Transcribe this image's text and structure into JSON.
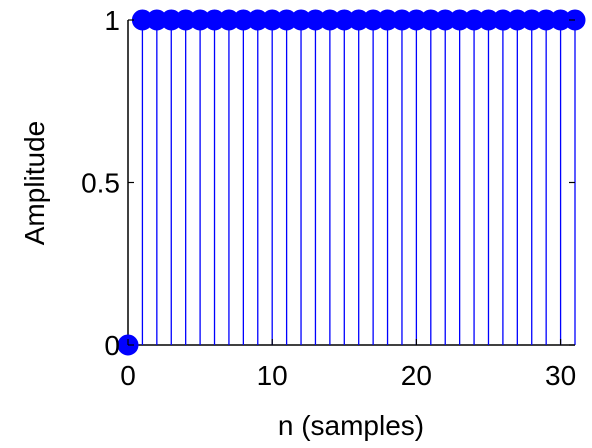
{
  "chart_data": {
    "type": "stem",
    "xlabel": "n (samples)",
    "ylabel": "Amplitude",
    "xlim": [
      0,
      31
    ],
    "ylim": [
      0,
      1
    ],
    "x_ticks": [
      0,
      10,
      20,
      30
    ],
    "x_tick_labels": [
      "0",
      "10",
      "20",
      "30"
    ],
    "y_ticks": [
      0,
      0.5,
      1
    ],
    "y_tick_labels": [
      "0",
      "0.5",
      "1"
    ],
    "grid": false,
    "series": [
      {
        "color": "#0000ff",
        "x": [
          0,
          1,
          2,
          3,
          4,
          5,
          6,
          7,
          8,
          9,
          10,
          11,
          12,
          13,
          14,
          15,
          16,
          17,
          18,
          19,
          20,
          21,
          22,
          23,
          24,
          25,
          26,
          27,
          28,
          29,
          30,
          31
        ],
        "values": [
          0,
          1,
          1,
          1,
          1,
          1,
          1,
          1,
          1,
          1,
          1,
          1,
          1,
          1,
          1,
          1,
          1,
          1,
          1,
          1,
          1,
          1,
          1,
          1,
          1,
          1,
          1,
          1,
          1,
          1,
          1,
          1
        ]
      }
    ]
  }
}
